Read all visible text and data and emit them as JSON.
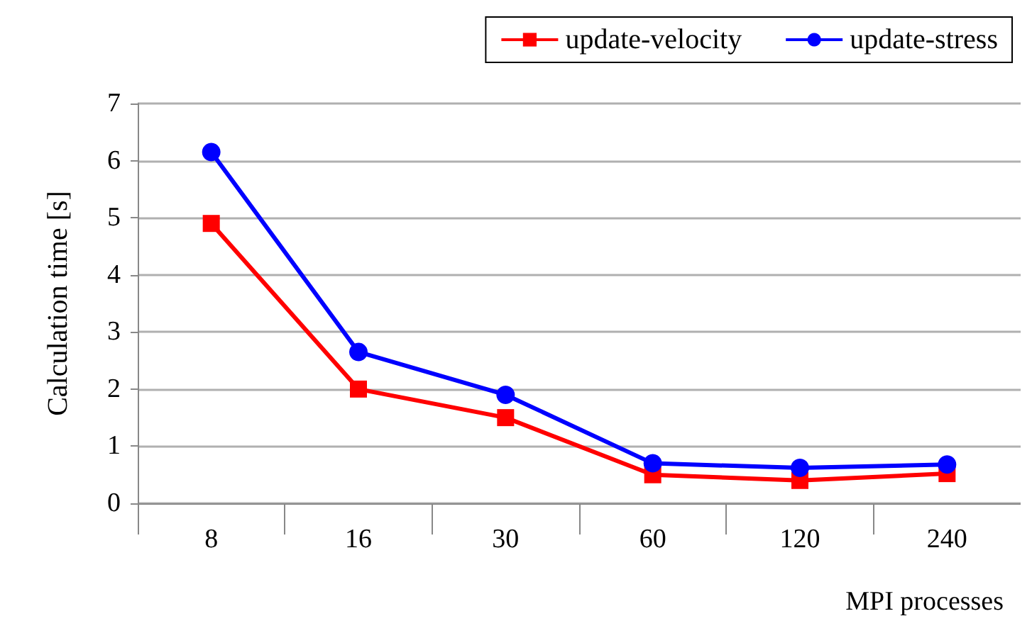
{
  "chart_data": {
    "type": "line",
    "xlabel": "MPI processes",
    "ylabel": "Calculation time [s]",
    "categories": [
      "8",
      "16",
      "30",
      "60",
      "120",
      "240"
    ],
    "series": [
      {
        "name": "update-velocity",
        "color": "#ff0000",
        "marker": "square",
        "values": [
          4.9,
          2.0,
          1.5,
          0.5,
          0.4,
          0.52
        ]
      },
      {
        "name": "update-stress",
        "color": "#0000ff",
        "marker": "circle",
        "values": [
          6.15,
          2.65,
          1.9,
          0.7,
          0.62,
          0.68
        ]
      }
    ],
    "ylim": [
      0,
      7
    ],
    "yticks": [
      0,
      1,
      2,
      3,
      4,
      5,
      6,
      7
    ],
    "grid": "y",
    "legend": "top right"
  }
}
